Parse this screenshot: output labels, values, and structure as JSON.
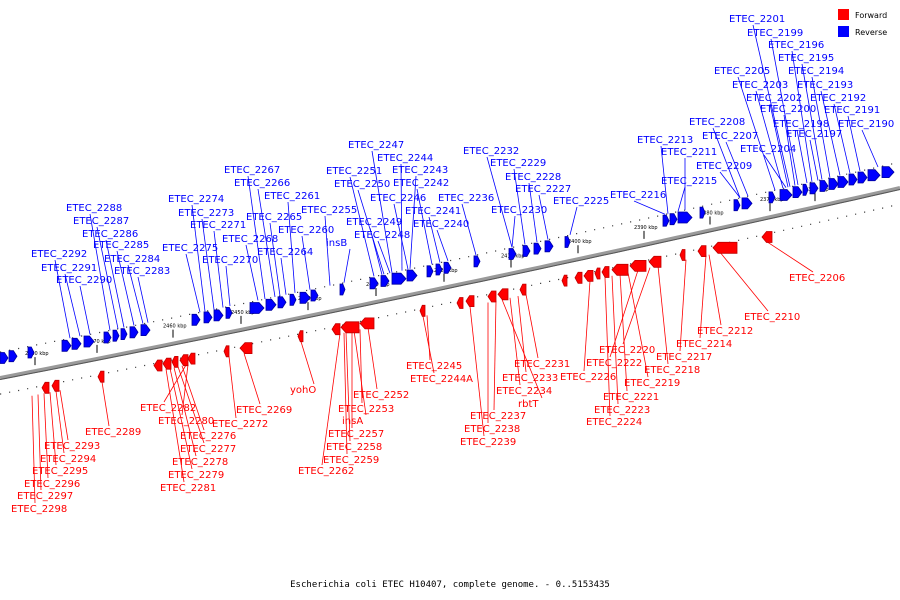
{
  "caption": "Escherichia coli ETEC H10407, complete genome. - 0..5153435",
  "legend": [
    {
      "label": "Forward",
      "color": "#ff0000"
    },
    {
      "label": "Reverse",
      "color": "#0000ff"
    }
  ],
  "colors": {
    "forward": "#ff0000",
    "reverse": "#0000ff",
    "forward_dark": "#c00000",
    "reverse_dark": "#0000a0",
    "backbone": "#8a8a8a",
    "leader": "#000000"
  },
  "scale_ticks": [
    "2480 kbp",
    "2470 kbp",
    "2460 kbp",
    "2450 kbp",
    "2440 kbp",
    "2430 kbp",
    "2420 kbp",
    "2410 kbp",
    "2400 kbp",
    "2390 kbp",
    "2380 kbp",
    "2370 kbp",
    "2360 kbp"
  ],
  "reverse_labels": [
    "ETEC_2201",
    "ETEC_2199",
    "ETEC_2196",
    "ETEC_2195",
    "ETEC_2194",
    "ETEC_2205",
    "ETEC_2203",
    "ETEC_2193",
    "ETEC_2202",
    "ETEC_2192",
    "ETEC_2200",
    "ETEC_2191",
    "ETEC_2208",
    "ETEC_2198",
    "ETEC_2190",
    "ETEC_2207",
    "ETEC_2197",
    "ETEC_2213",
    "ETEC_2204",
    "ETEC_2211",
    "ETEC_2209",
    "ETEC_2215",
    "ETEC_2216",
    "ETEC_2225",
    "ETEC_2232",
    "ETEC_2229",
    "ETEC_2228",
    "ETEC_2227",
    "ETEC_2230",
    "ETEC_2236",
    "ETEC_2247",
    "ETEC_2244",
    "ETEC_2243",
    "ETEC_2242",
    "ETEC_2251",
    "ETEC_2250",
    "ETEC_2246",
    "ETEC_2241",
    "ETEC_2240",
    "ETEC_2267",
    "ETEC_2266",
    "ETEC_2261",
    "ETEC_2255",
    "ETEC_2249",
    "ETEC_2248",
    "ETEC_2274",
    "ETEC_2273",
    "ETEC_2265",
    "ETEC_2271",
    "ETEC_2260",
    "ETEC_2268",
    "insB",
    "ETEC_2288",
    "ETEC_2287",
    "ETEC_2286",
    "ETEC_2285",
    "ETEC_2275",
    "ETEC_2264",
    "ETEC_2292",
    "ETEC_2284",
    "ETEC_2270",
    "ETEC_2291",
    "ETEC_2283",
    "ETEC_2290"
  ],
  "forward_labels": [
    "ETEC_2206",
    "ETEC_2210",
    "ETEC_2212",
    "ETEC_2214",
    "ETEC_2217",
    "ETEC_2218",
    "ETEC_2220",
    "ETEC_2222",
    "ETEC_2219",
    "ETEC_2226",
    "ETEC_2221",
    "ETEC_2223",
    "ETEC_2224",
    "ETEC_2231",
    "ETEC_2233",
    "ETEC_2234",
    "rbtT",
    "ETEC_2237",
    "ETEC_2238",
    "ETEC_2239",
    "ETEC_2245",
    "ETEC_2244A",
    "ETEC_2252",
    "ETEC_2253",
    "insA",
    "ETEC_2257",
    "ETEC_2258",
    "ETEC_2259",
    "ETEC_2262",
    "yohO",
    "ETEC_2269",
    "ETEC_2272",
    "ETEC_2282",
    "ETEC_2280",
    "ETEC_2276",
    "ETEC_2277",
    "ETEC_2278",
    "ETEC_2279",
    "ETEC_2281",
    "ETEC_2289",
    "ETEC_2293",
    "ETEC_2294",
    "ETEC_2295",
    "ETEC_2296",
    "ETEC_2297",
    "ETEC_2298"
  ]
}
